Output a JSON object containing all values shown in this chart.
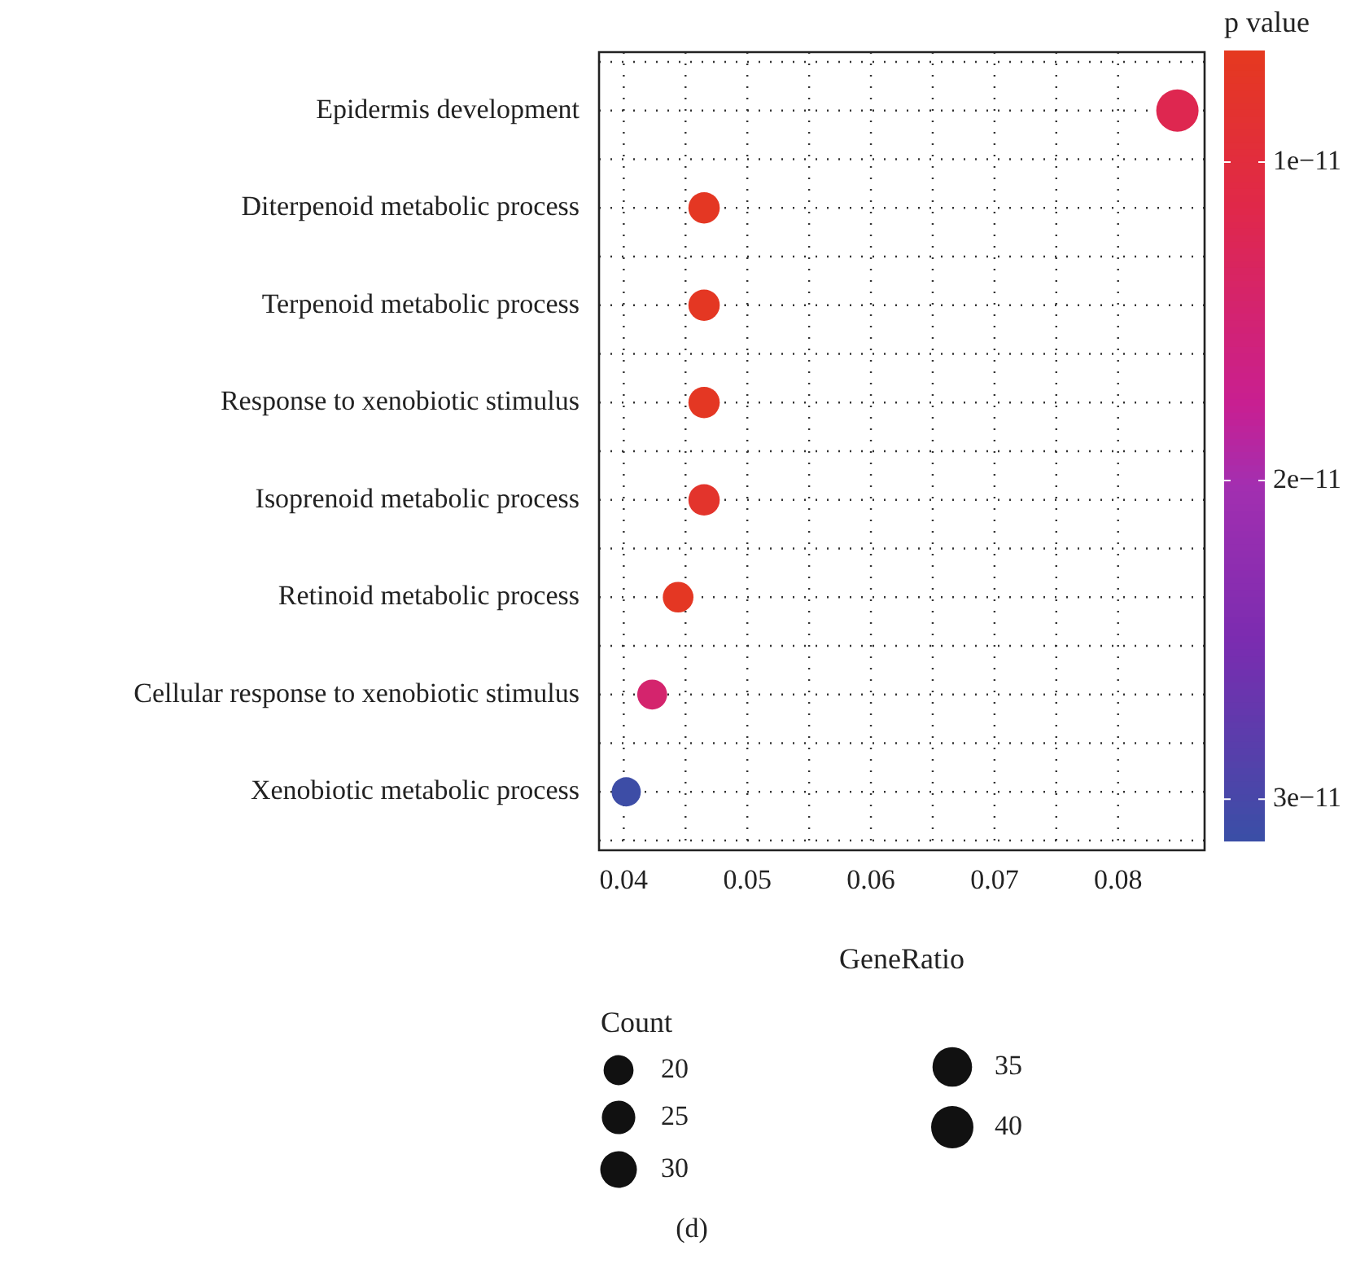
{
  "chart_data": {
    "type": "bubble",
    "categories": [
      "Epidermis development",
      "Diterpenoid metabolic process",
      "Terpenoid metabolic process",
      "Response to xenobiotic stimulus",
      "Isoprenoid metabolic process",
      "Retinoid metabolic process",
      "Cellular response to xenobiotic stimulus",
      "Xenobiotic metabolic process"
    ],
    "orientation": "horizontal",
    "series": [
      {
        "values": [
          0.0848,
          0.0465,
          0.0465,
          0.0465,
          0.0465,
          0.0444,
          0.0423,
          0.0402
        ],
        "sizes": [
          40,
          22,
          22,
          22,
          22,
          21,
          20,
          19
        ],
        "cvalues": [
          1.2e-11,
          7e-12,
          7e-12,
          7e-12,
          8e-12,
          7e-12,
          1.45e-11,
          3.1e-11
        ]
      }
    ],
    "xlabel": "GeneRatio",
    "xlim": [
      0.038,
      0.087
    ],
    "xticks": [
      0.04,
      0.05,
      0.06,
      0.07,
      0.08
    ],
    "clabel": "p value",
    "clim": [
      6.5e-12,
      3.13e-11
    ],
    "cticks": [
      {
        "value": 1e-11,
        "label": "1e−11"
      },
      {
        "value": 2e-11,
        "label": "2e−11"
      },
      {
        "value": 3e-11,
        "label": "3e−11"
      }
    ],
    "legend_title": "Count",
    "size_legend": [
      20,
      25,
      30,
      35,
      40
    ],
    "grid": true,
    "line_style": "dotted",
    "annotations": [
      "(d)"
    ]
  }
}
